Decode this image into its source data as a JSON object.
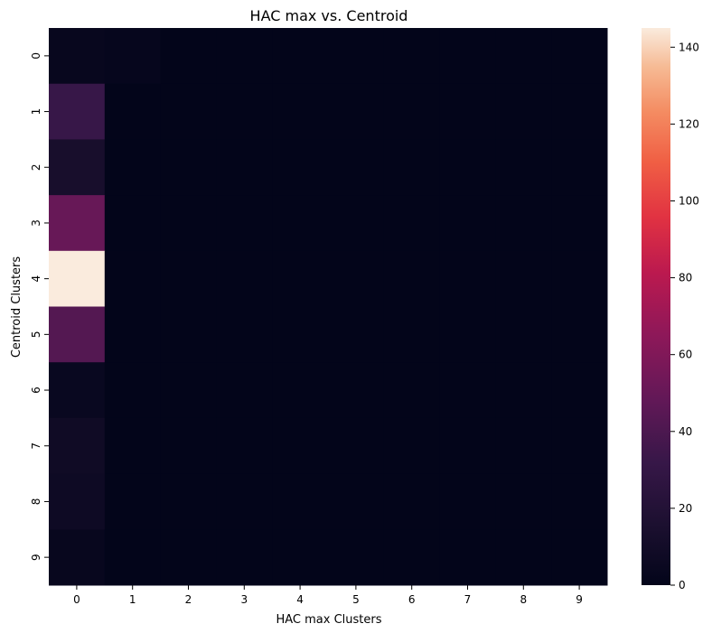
{
  "chart_data": {
    "type": "heatmap",
    "title": "HAC max  vs. Centroid",
    "xlabel": "HAC max Clusters",
    "ylabel": "Centroid Clusters",
    "x_categories": [
      "0",
      "1",
      "2",
      "3",
      "4",
      "5",
      "6",
      "7",
      "8",
      "9"
    ],
    "y_categories": [
      "0",
      "1",
      "2",
      "3",
      "4",
      "5",
      "6",
      "7",
      "8",
      "9"
    ],
    "values": [
      [
        3,
        2,
        0,
        0,
        0,
        0,
        0,
        0,
        0,
        0
      ],
      [
        32,
        0,
        0,
        0,
        0,
        0,
        0,
        0,
        0,
        0
      ],
      [
        13,
        0,
        0,
        0,
        0,
        0,
        0,
        0,
        0,
        0
      ],
      [
        50,
        0,
        0,
        0,
        0,
        0,
        0,
        0,
        0,
        0
      ],
      [
        145,
        0,
        0,
        0,
        0,
        0,
        0,
        0,
        0,
        0
      ],
      [
        43,
        0,
        0,
        0,
        0,
        0,
        0,
        0,
        0,
        0
      ],
      [
        4,
        0,
        0,
        0,
        0,
        0,
        0,
        0,
        0,
        0
      ],
      [
        8,
        0,
        0,
        0,
        0,
        0,
        0,
        0,
        0,
        0
      ],
      [
        7,
        0,
        0,
        0,
        0,
        0,
        0,
        0,
        0,
        0
      ],
      [
        3,
        0,
        0,
        0,
        0,
        0,
        0,
        0,
        0,
        0
      ]
    ],
    "colormap": "rocket",
    "colorbar": {
      "min": 0,
      "max": 145,
      "ticks": [
        0,
        20,
        40,
        60,
        80,
        100,
        120,
        140
      ]
    }
  }
}
